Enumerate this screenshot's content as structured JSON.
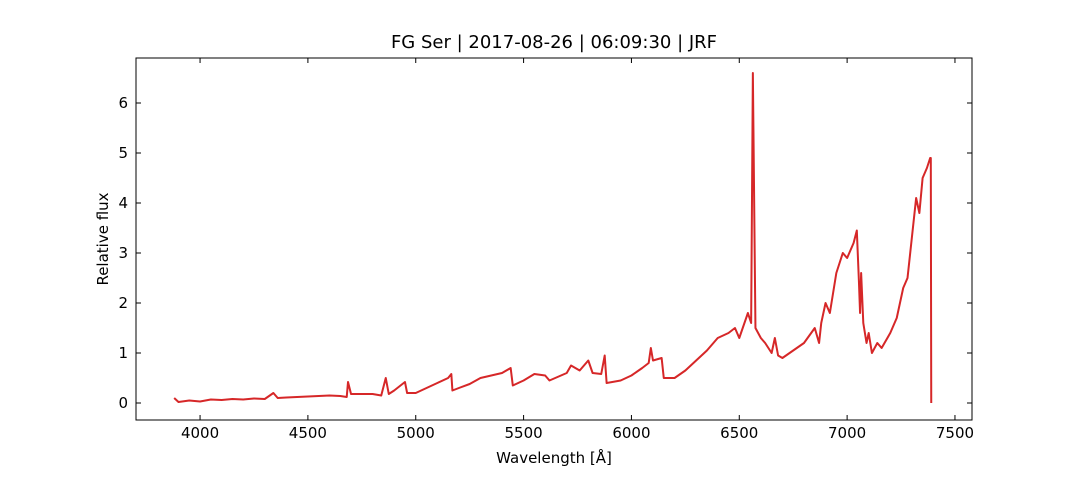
{
  "chart_data": {
    "type": "line",
    "title": "FG Ser | 2017-08-26 | 06:09:30 | JRF",
    "x_label": "Wavelength [Å]",
    "y_label": "Relative flux",
    "x": [
      3880,
      3900,
      3950,
      4000,
      4050,
      4100,
      4150,
      4200,
      4250,
      4300,
      4340,
      4360,
      4400,
      4500,
      4600,
      4650,
      4680,
      4686,
      4700,
      4800,
      4840,
      4861,
      4875,
      4900,
      4950,
      4960,
      5000,
      5050,
      5100,
      5150,
      5165,
      5170,
      5200,
      5250,
      5300,
      5350,
      5400,
      5440,
      5450,
      5500,
      5550,
      5600,
      5620,
      5700,
      5720,
      5760,
      5800,
      5820,
      5860,
      5876,
      5885,
      5950,
      6000,
      6050,
      6080,
      6090,
      6100,
      6140,
      6150,
      6200,
      6250,
      6300,
      6350,
      6400,
      6450,
      6480,
      6500,
      6540,
      6555,
      6563,
      6575,
      6600,
      6620,
      6650,
      6665,
      6680,
      6700,
      6750,
      6800,
      6850,
      6870,
      6880,
      6900,
      6920,
      6950,
      6980,
      7000,
      7030,
      7045,
      7055,
      7060,
      7065,
      7075,
      7090,
      7100,
      7115,
      7140,
      7160,
      7200,
      7230,
      7260,
      7280,
      7300,
      7320,
      7335,
      7350,
      7370,
      7385,
      7388,
      7390
    ],
    "series": [
      {
        "name": "FG Ser",
        "color": "#d62728",
        "values": [
          0.1,
          0.02,
          0.05,
          0.03,
          0.07,
          0.06,
          0.08,
          0.07,
          0.09,
          0.08,
          0.2,
          0.1,
          0.11,
          0.13,
          0.15,
          0.14,
          0.12,
          0.42,
          0.18,
          0.18,
          0.15,
          0.5,
          0.18,
          0.25,
          0.42,
          0.2,
          0.2,
          0.3,
          0.4,
          0.5,
          0.58,
          0.25,
          0.3,
          0.38,
          0.5,
          0.55,
          0.6,
          0.7,
          0.35,
          0.45,
          0.58,
          0.55,
          0.45,
          0.6,
          0.75,
          0.65,
          0.85,
          0.6,
          0.58,
          0.95,
          0.4,
          0.45,
          0.55,
          0.7,
          0.8,
          1.1,
          0.85,
          0.9,
          0.5,
          0.5,
          0.65,
          0.85,
          1.05,
          1.3,
          1.4,
          1.5,
          1.3,
          1.8,
          1.6,
          6.6,
          1.5,
          1.3,
          1.2,
          1.0,
          1.3,
          0.95,
          0.9,
          1.05,
          1.2,
          1.5,
          1.2,
          1.6,
          2.0,
          1.8,
          2.6,
          3.0,
          2.9,
          3.2,
          3.45,
          2.4,
          1.8,
          2.6,
          1.6,
          1.2,
          1.4,
          1.0,
          1.2,
          1.1,
          1.4,
          1.7,
          2.3,
          2.5,
          3.3,
          4.1,
          3.8,
          4.5,
          4.7,
          4.9,
          4.9,
          0.0
        ]
      }
    ],
    "xlim": [
      3703,
      7579
    ],
    "ylim": [
      -0.34,
      6.9
    ],
    "xticks": [
      4000,
      4500,
      5000,
      5500,
      6000,
      6500,
      7000,
      7500
    ],
    "yticks": [
      0,
      1,
      2,
      3,
      4,
      5,
      6
    ]
  }
}
